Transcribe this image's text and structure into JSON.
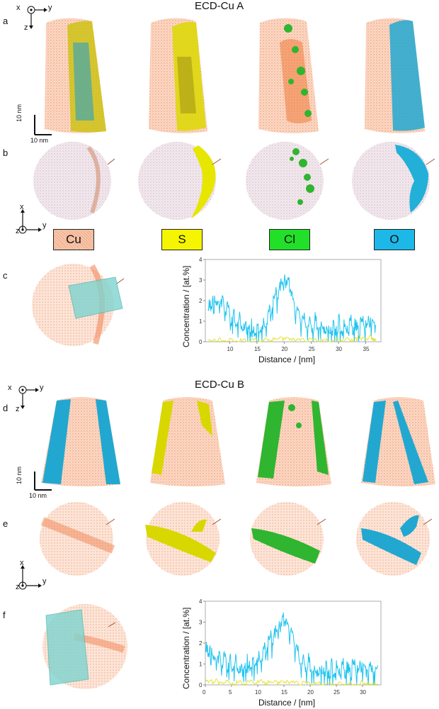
{
  "figure": {
    "section_a_title": "ECD-Cu A",
    "section_b_title": "ECD-Cu B",
    "panel_labels": [
      "a",
      "b",
      "c",
      "d",
      "e",
      "f"
    ],
    "axes_top": {
      "x": "x",
      "y": "y",
      "z": "z"
    },
    "axes_bottom": {
      "x": "x",
      "y": "y",
      "z": "z"
    },
    "scalebar_vertical": "10 nm",
    "scalebar_horizontal": "10 nm",
    "legend": [
      {
        "label": "Cu",
        "color": "#f4b89a"
      },
      {
        "label": "S",
        "color": "#f5f500"
      },
      {
        "label": "Cl",
        "color": "#22e02a"
      },
      {
        "label": "O",
        "color": "#1cb8e8"
      }
    ],
    "colors": {
      "cu": "#f08a5d",
      "s": "#e6e600",
      "cl": "#2fb52f",
      "o": "#22a8d0",
      "plot_o": "#22c4ee",
      "plot_s": "#e0e020"
    }
  },
  "chart_data": [
    {
      "type": "line",
      "panel": "c",
      "title": "",
      "xlabel": "Distance / [nm]",
      "ylabel": "Concentration / [at.%]",
      "xlim": [
        5.5,
        37.8
      ],
      "ylim": [
        0,
        4
      ],
      "xticks": [
        10,
        15,
        20,
        25,
        30,
        35
      ],
      "yticks": [
        0,
        1,
        2,
        3,
        4
      ],
      "series": [
        {
          "name": "O",
          "color": "#22c4ee",
          "x": [
            6,
            7,
            8,
            9,
            10,
            11,
            12,
            13,
            14,
            15,
            16,
            17,
            18,
            19,
            20,
            21,
            22,
            23,
            24,
            25,
            26,
            27,
            28,
            29,
            30,
            31,
            32,
            33,
            34,
            35,
            36,
            37
          ],
          "y": [
            1.5,
            1.7,
            1.9,
            1.6,
            1.3,
            1.0,
            0.95,
            0.9,
            0.75,
            0.55,
            0.7,
            1.2,
            1.8,
            2.4,
            2.8,
            2.5,
            1.5,
            1.0,
            0.9,
            0.8,
            0.85,
            0.9,
            0.75,
            0.7,
            0.8,
            0.7,
            0.75,
            0.6,
            0.65,
            0.7,
            0.6,
            0.55
          ]
        },
        {
          "name": "S",
          "color": "#e0e020",
          "x": [
            6,
            8,
            10,
            12,
            14,
            16,
            18,
            20,
            22,
            24,
            26,
            28,
            30,
            32,
            34,
            36,
            37
          ],
          "y": [
            0.15,
            0.1,
            0.1,
            0.05,
            0.05,
            0.05,
            0.1,
            0.15,
            0.05,
            0.05,
            0.05,
            0.05,
            0.1,
            0.15,
            0.25,
            0.2,
            0.15
          ]
        }
      ]
    },
    {
      "type": "line",
      "panel": "f",
      "title": "",
      "xlabel": "Distance / [nm]",
      "ylabel": "Concentration / [at.%]",
      "xlim": [
        0,
        33.5
      ],
      "ylim": [
        0,
        4
      ],
      "xticks": [
        0,
        5,
        10,
        15,
        20,
        25,
        30
      ],
      "yticks": [
        0,
        1,
        2,
        3,
        4
      ],
      "series": [
        {
          "name": "O",
          "color": "#22c4ee",
          "x": [
            0,
            1,
            2,
            3,
            4,
            5,
            6,
            7,
            8,
            9,
            10,
            11,
            12,
            13,
            14,
            15,
            16,
            17,
            18,
            19,
            20,
            21,
            22,
            23,
            24,
            25,
            26,
            27,
            28,
            29,
            30,
            31,
            32,
            33
          ],
          "y": [
            1.6,
            1.3,
            1.2,
            1.0,
            1.1,
            0.9,
            1.0,
            0.9,
            1.1,
            1.0,
            1.2,
            1.5,
            1.9,
            2.2,
            2.5,
            2.9,
            2.6,
            1.9,
            1.2,
            1.0,
            0.9,
            0.8,
            0.9,
            0.8,
            0.7,
            0.8,
            0.7,
            0.6,
            0.7,
            0.6,
            0.5,
            0.5,
            0.6,
            0.5
          ]
        },
        {
          "name": "S",
          "color": "#e0e020",
          "x": [
            0,
            2,
            4,
            6,
            8,
            10,
            12,
            14,
            16,
            18,
            20,
            22,
            24,
            26,
            28,
            30,
            32,
            33
          ],
          "y": [
            0.3,
            0.2,
            0.15,
            0.1,
            0.1,
            0.15,
            0.1,
            0.1,
            0.1,
            0.05,
            0.05,
            0.05,
            0.05,
            0.1,
            0.05,
            0.1,
            0.1,
            0.05
          ]
        }
      ]
    }
  ]
}
